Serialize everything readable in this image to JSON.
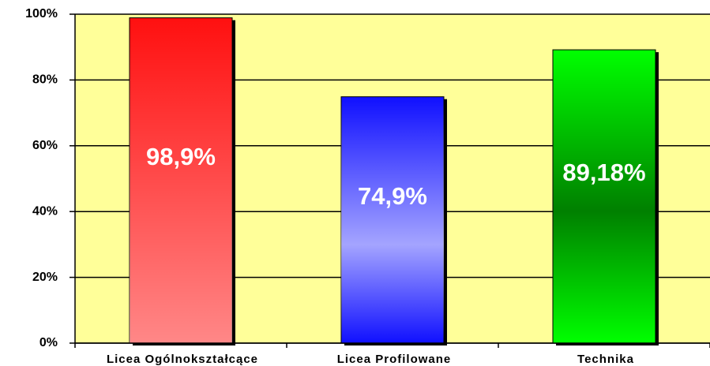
{
  "chart_data": {
    "type": "bar",
    "categories": [
      "Licea Ogólnokształcące",
      "Licea Profilowane",
      "Technika"
    ],
    "values": [
      98.9,
      74.9,
      89.18
    ],
    "value_labels": [
      "98,9%",
      "74,9%",
      "89,18%"
    ],
    "colors": [
      "#ff1010",
      "#1010ff",
      "#00ff00"
    ],
    "ylim": [
      0,
      100
    ],
    "yticks": [
      {
        "value": 0,
        "label": "0%"
      },
      {
        "value": 20,
        "label": "20%"
      },
      {
        "value": 40,
        "label": "40%"
      },
      {
        "value": 60,
        "label": "60%"
      },
      {
        "value": 80,
        "label": "80%"
      },
      {
        "value": 100,
        "label": "100%"
      }
    ],
    "grid": true
  }
}
